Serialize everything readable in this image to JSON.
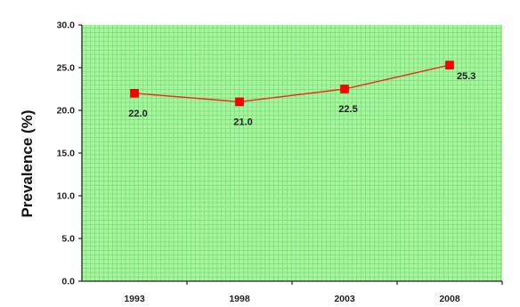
{
  "chart_data": {
    "type": "line",
    "title": "",
    "xlabel": "",
    "ylabel": "Prevalence (%)",
    "categories": [
      "1993",
      "1998",
      "2003",
      "2008"
    ],
    "series": [
      {
        "values": [
          22.0,
          21.0,
          22.5,
          25.3
        ],
        "data_labels": [
          "22.0",
          "21.0",
          "22.5",
          "25.3"
        ]
      }
    ],
    "ylim": [
      0,
      30
    ],
    "yticks": [
      "0.0",
      "5.0",
      "10.0",
      "15.0",
      "20.0",
      "25.0",
      "30.0"
    ],
    "grid": true,
    "legend": "none",
    "colors": {
      "background": "#a8f5a0",
      "grid_line": "#6fd86c",
      "line": "#ee2b1c",
      "marker": "#ff0000",
      "axis": "#222222"
    }
  }
}
